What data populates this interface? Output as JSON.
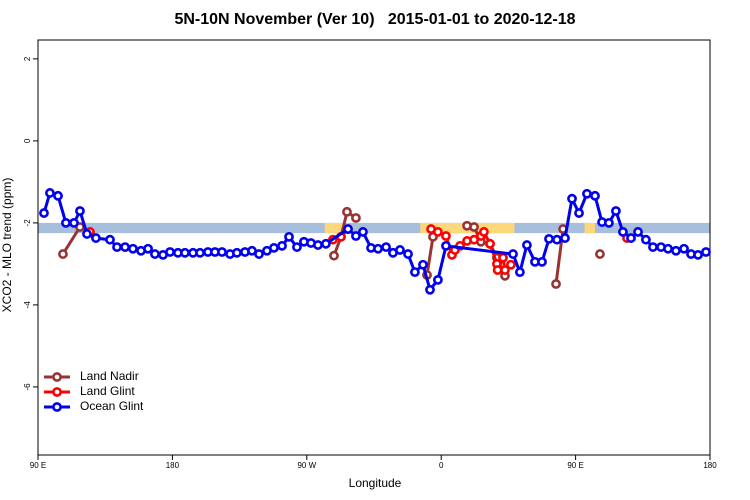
{
  "chart_data": {
    "type": "line",
    "title": "5N-10N November (Ver 10)   2015-01-01 to 2020-12-18",
    "xlabel": "Longitude",
    "ylabel": "XCO2 - MLO trend (ppm)",
    "xlim": [
      90,
      540
    ],
    "ylim": [
      -7.66,
      2.46
    ],
    "xticks": [
      {
        "value": 90,
        "label": "90 E"
      },
      180,
      {
        "value": 270,
        "label": "90 W"
      },
      {
        "value": 360,
        "label": "0"
      },
      {
        "value": 450,
        "label": "90 E"
      },
      {
        "value": 540,
        "label": "180"
      }
    ],
    "yticks": [
      -6,
      -4,
      -2,
      0,
      2
    ],
    "legend": "bottom-left",
    "strip": {
      "ylim": [
        -2.25,
        -2
      ],
      "color": "#a7bfdd",
      "land_color": "#fcd87a",
      "land_ranges": [
        [
          282,
          296
        ],
        [
          346,
          409
        ],
        [
          456,
          463
        ]
      ]
    },
    "series": [
      {
        "name": "Land Nadir",
        "color": "#993333",
        "x": [
          106.7,
          118.1,
          null,
          288.2,
          292.9,
          296.9,
          302.9,
          null,
          350.5,
          354.5,
          null,
          377.3,
          382.0,
          386.6,
          392.7,
          397.3,
          402.7,
          null,
          436.9,
          441.6,
          null,
          466.3
        ],
        "values": [
          -2.76,
          -2.1,
          null,
          -2.8,
          -2.34,
          -1.73,
          -1.88,
          null,
          -3.27,
          -2.34,
          null,
          -2.07,
          -2.1,
          -2.46,
          -2.51,
          -2.85,
          -3.29,
          null,
          -3.49,
          -2.15,
          null,
          -2.76
        ]
      },
      {
        "name": "Land Glint",
        "color": "#ff0000",
        "x": [
          124.8,
          null,
          287.5,
          292.9,
          297.6,
          null,
          353.2,
          357.8,
          363.2,
          367.2,
          369.2,
          372.6,
          377.3,
          382.0,
          386.6,
          388.6,
          392.7,
          397.3,
          397.8,
          401.4,
          402.7,
          406.7,
          null,
          484.4
        ],
        "values": [
          -2.22,
          null,
          -2.41,
          -2.34,
          -2.15,
          null,
          -2.15,
          -2.22,
          -2.32,
          -2.78,
          -2.66,
          -2.56,
          -2.44,
          -2.41,
          -2.32,
          -2.22,
          -2.51,
          -3.0,
          -3.15,
          -2.85,
          -3.15,
          -3.02,
          null,
          -2.37
        ]
      },
      {
        "name": "Ocean Glint",
        "color": "#0000ee",
        "x": [
          94.0,
          98.0,
          103.4,
          108.7,
          114.1,
          118.1,
          122.8,
          128.8,
          138.2,
          142.9,
          148.3,
          153.6,
          159.0,
          163.7,
          168.3,
          173.7,
          178.4,
          183.7,
          188.4,
          193.8,
          198.5,
          203.8,
          208.5,
          213.2,
          218.6,
          223.2,
          228.6,
          233.3,
          238.0,
          243.3,
          248.0,
          253.4,
          258.1,
          263.4,
          268.1,
          272.8,
          277.5,
          282.8,
          297.6,
          302.9,
          307.6,
          313.0,
          317.7,
          323.1,
          327.7,
          332.4,
          337.8,
          342.4,
          347.8,
          352.5,
          357.8,
          363.2,
          408.1,
          412.7,
          417.4,
          422.8,
          427.5,
          432.2,
          437.5,
          442.9,
          447.6,
          452.3,
          457.6,
          463.0,
          467.7,
          472.3,
          477.0,
          481.7,
          487.1,
          491.8,
          497.1,
          501.8,
          507.2,
          511.9,
          517.2,
          522.6,
          527.3,
          532.0,
          537.3
        ],
        "values": [
          -1.76,
          -1.27,
          -1.34,
          -2.0,
          -2.0,
          -1.71,
          -2.27,
          -2.37,
          -2.41,
          -2.59,
          -2.59,
          -2.63,
          -2.68,
          -2.63,
          -2.76,
          -2.78,
          -2.71,
          -2.73,
          -2.73,
          -2.73,
          -2.73,
          -2.71,
          -2.71,
          -2.71,
          -2.76,
          -2.73,
          -2.71,
          -2.68,
          -2.76,
          -2.68,
          -2.61,
          -2.56,
          -2.34,
          -2.59,
          -2.46,
          -2.49,
          -2.54,
          -2.51,
          -2.15,
          -2.32,
          -2.22,
          -2.61,
          -2.63,
          -2.59,
          -2.73,
          -2.66,
          -2.76,
          -3.2,
          -3.02,
          -3.63,
          -3.39,
          -2.56,
          -2.76,
          -3.2,
          -2.54,
          -2.95,
          -2.95,
          -2.39,
          -2.41,
          -2.37,
          -1.41,
          -1.76,
          -1.29,
          -1.34,
          -1.98,
          -2.0,
          -1.71,
          -2.22,
          -2.37,
          -2.22,
          -2.41,
          -2.59,
          -2.59,
          -2.63,
          -2.68,
          -2.63,
          -2.76,
          -2.78,
          -2.71
        ]
      }
    ]
  }
}
